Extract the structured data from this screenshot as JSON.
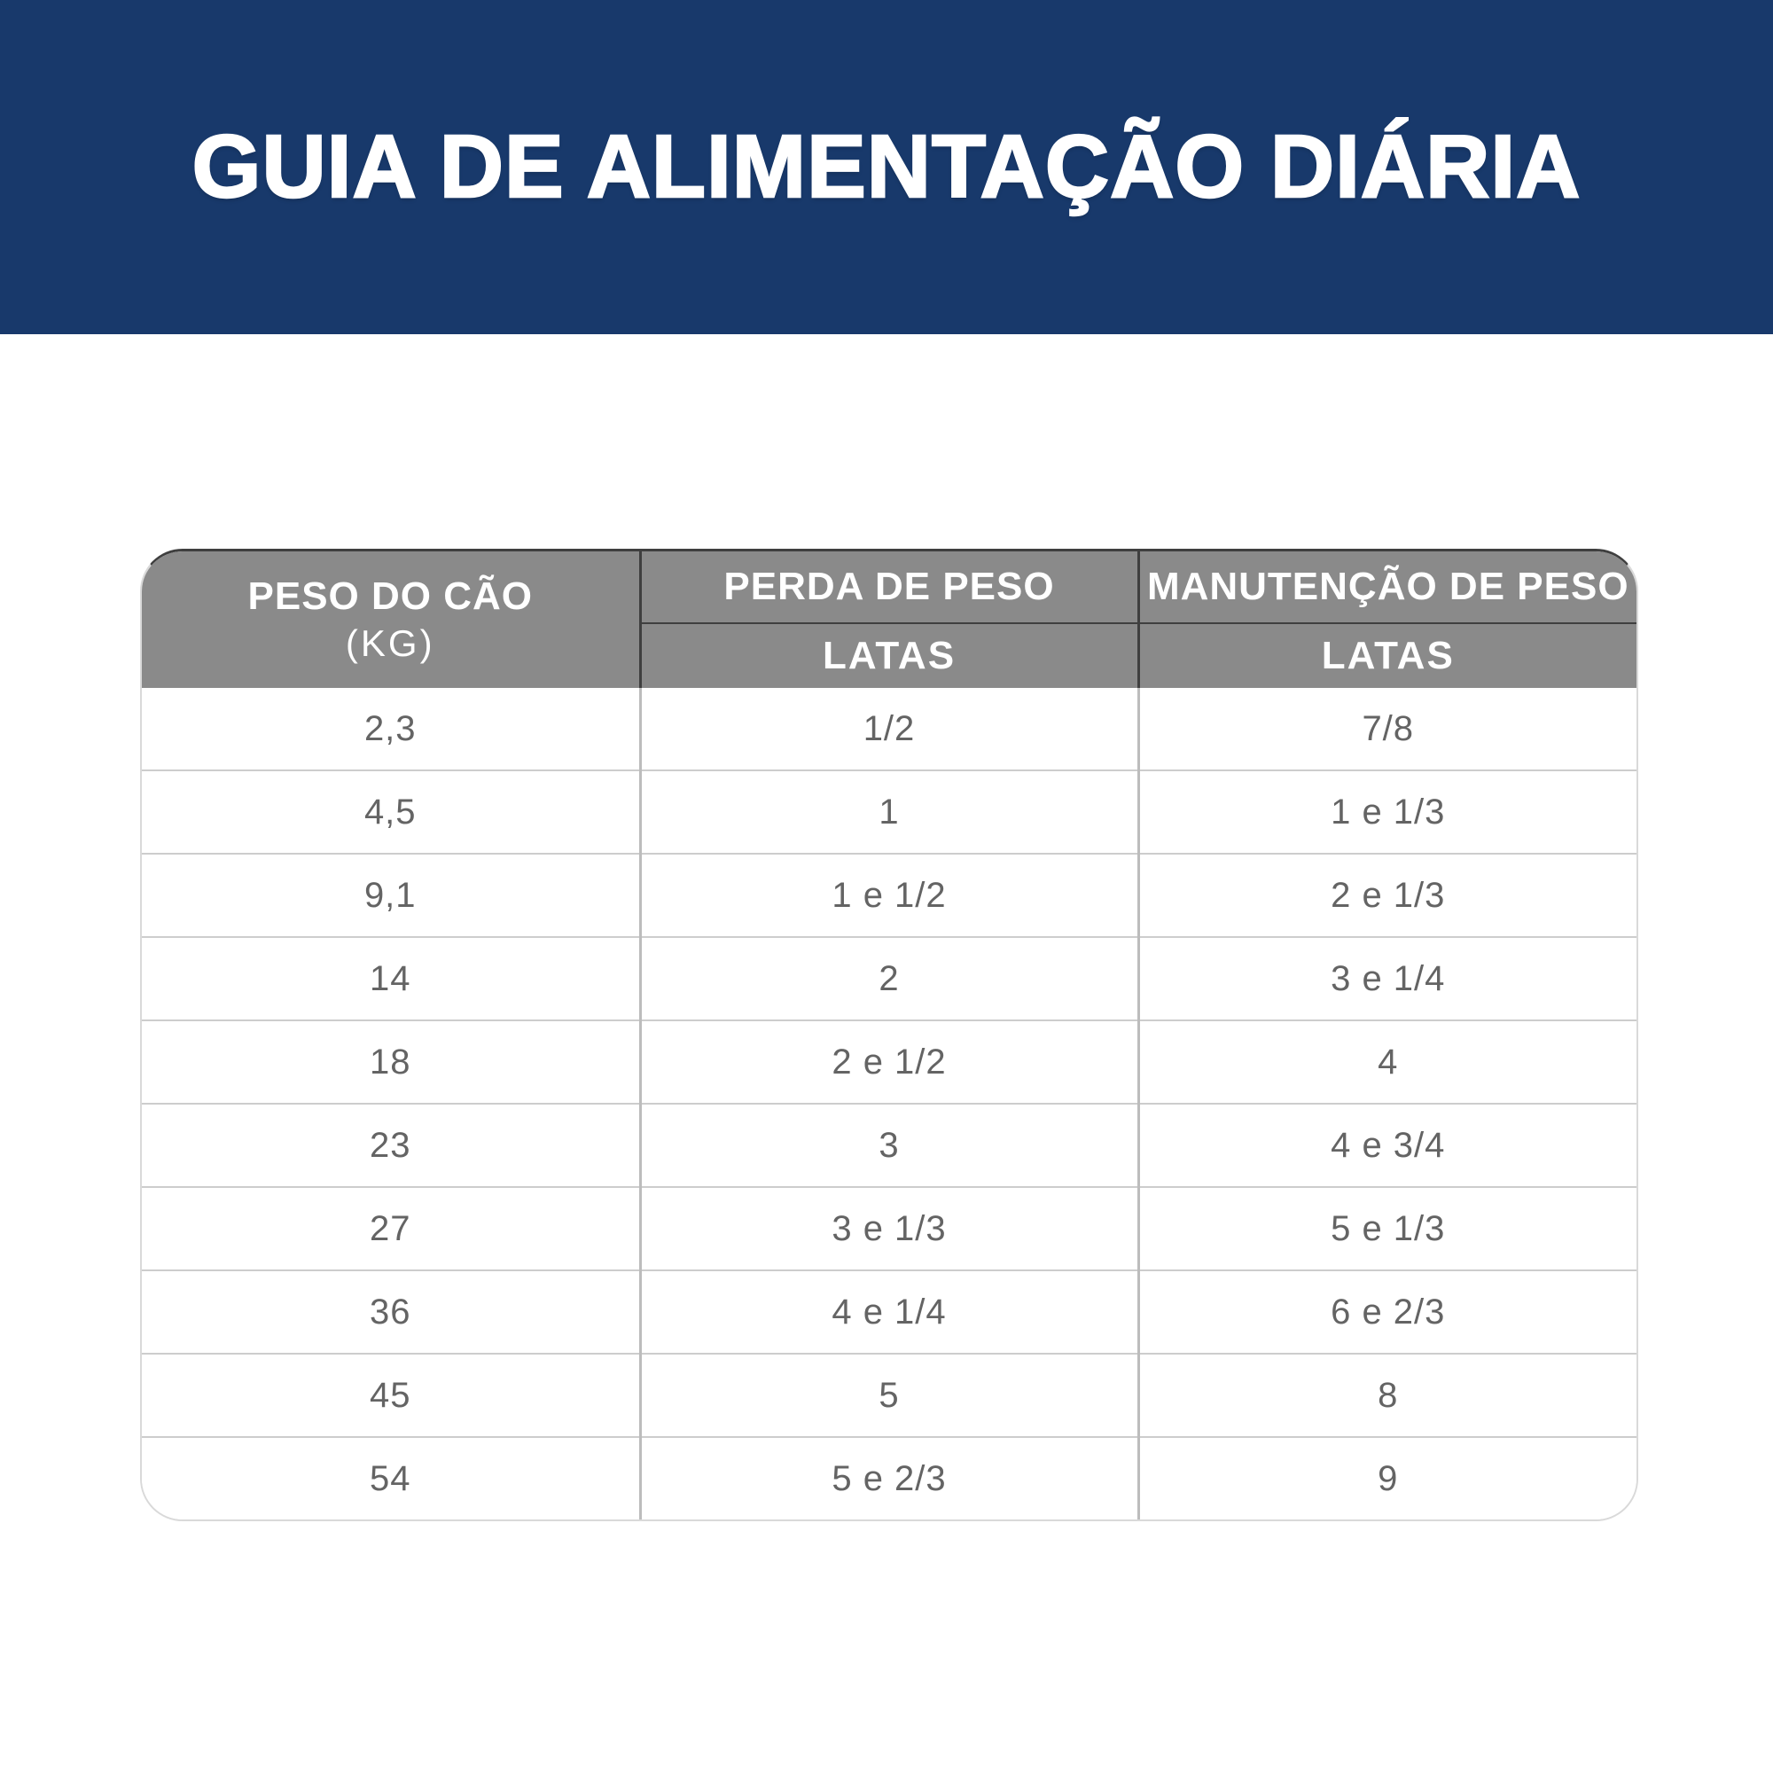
{
  "banner": {
    "title": "GUIA DE ALIMENTAÇÃO DIÁRIA"
  },
  "table": {
    "columns": {
      "weight_header": "PESO DO CÃO",
      "weight_unit": "(KG)",
      "loss_header": "PERDA DE PESO",
      "maintenance_header": "MANUTENÇÃO DE PESO",
      "loss_subheader": "LATAS",
      "maintenance_subheader": "LATAS"
    },
    "rows": [
      {
        "weight_kg": "2,3",
        "loss_cans": "1/2",
        "maintenance_cans": "7/8"
      },
      {
        "weight_kg": "4,5",
        "loss_cans": "1",
        "maintenance_cans": "1 e 1/3"
      },
      {
        "weight_kg": "9,1",
        "loss_cans": "1 e 1/2",
        "maintenance_cans": "2 e 1/3"
      },
      {
        "weight_kg": "14",
        "loss_cans": "2",
        "maintenance_cans": "3 e 1/4"
      },
      {
        "weight_kg": "18",
        "loss_cans": "2 e 1/2",
        "maintenance_cans": "4"
      },
      {
        "weight_kg": "23",
        "loss_cans": "3",
        "maintenance_cans": "4 e 3/4"
      },
      {
        "weight_kg": "27",
        "loss_cans": "3 e 1/3",
        "maintenance_cans": "5 e 1/3"
      },
      {
        "weight_kg": "36",
        "loss_cans": "4 e 1/4",
        "maintenance_cans": "6 e 2/3"
      },
      {
        "weight_kg": "45",
        "loss_cans": "5",
        "maintenance_cans": "8"
      },
      {
        "weight_kg": "54",
        "loss_cans": "5 e 2/3",
        "maintenance_cans": "9"
      }
    ]
  },
  "colors": {
    "banner_navy": "#18396B",
    "header_gray": "#8A8A8A",
    "header_divider_dark": "#3F3F3F",
    "body_text_gray": "#646464",
    "row_divider": "#CDCDCD",
    "column_divider": "#BCBCBC",
    "outer_border": "#D9D9D9"
  }
}
